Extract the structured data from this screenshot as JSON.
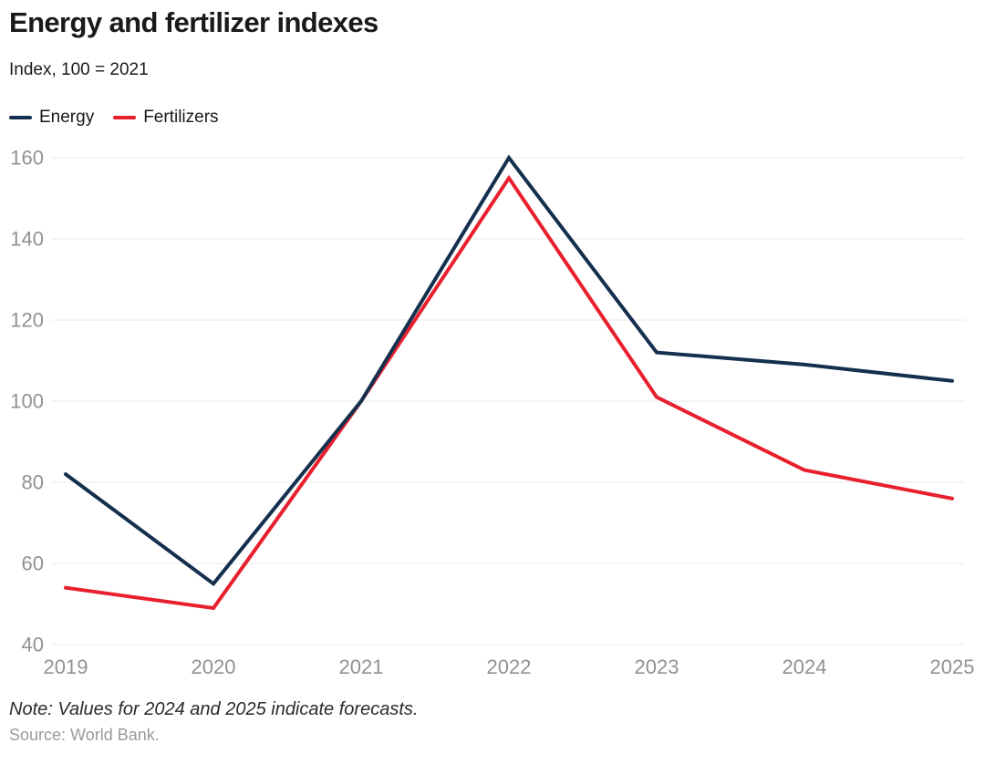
{
  "header": {
    "title": "Energy and fertilizer indexes",
    "subtitle": "Index, 100 = 2021"
  },
  "legend": [
    {
      "label": "Energy",
      "color": "#14304e"
    },
    {
      "label": "Fertilizers",
      "color": "#e8202e"
    }
  ],
  "chart_data": {
    "type": "line",
    "title": "Energy and fertilizer indexes",
    "subtitle": "Index, 100 = 2021",
    "x": [
      "2019",
      "2020",
      "2021",
      "2022",
      "2023",
      "2024",
      "2025"
    ],
    "series": [
      {
        "name": "Energy",
        "color": "#14304e",
        "values": [
          82,
          55,
          100,
          160,
          112,
          109,
          105
        ]
      },
      {
        "name": "Fertilizers",
        "color": "#e8202e",
        "values": [
          54,
          49,
          100,
          155,
          101,
          83,
          76
        ]
      }
    ],
    "ylim": [
      40,
      160
    ],
    "yticks": [
      40,
      60,
      80,
      100,
      120,
      140,
      160
    ],
    "grid": "horizontal-only",
    "grid_color": "#e8e8e8",
    "tick_color": "#929292",
    "legend_position": "top-left",
    "xlabel": "",
    "ylabel": ""
  },
  "footer": {
    "note": "Note: Values for 2024 and 2025 indicate forecasts.",
    "source": "Source: World Bank."
  }
}
